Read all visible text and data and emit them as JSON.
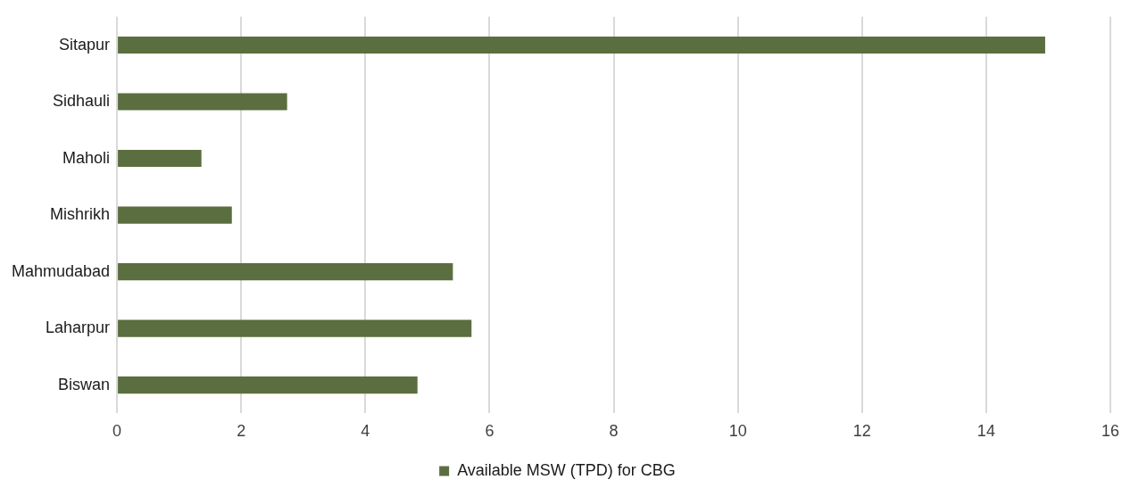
{
  "chart_data": {
    "type": "bar",
    "orientation": "horizontal",
    "categories": [
      "Sitapur",
      "Sidhauli",
      "Maholi",
      "Mishrikh",
      "Mahmudabad",
      "Laharpur",
      "Biswan"
    ],
    "series": [
      {
        "name": "Available MSW (TPD) for CBG",
        "color": "#5a6e3f",
        "values": [
          14.95,
          2.74,
          1.36,
          1.85,
          5.41,
          5.71,
          4.84
        ]
      }
    ],
    "xlim": [
      0,
      16
    ],
    "xticks": [
      0,
      2,
      4,
      6,
      8,
      10,
      12,
      14,
      16
    ],
    "grid": "x",
    "legend": "bottom"
  }
}
